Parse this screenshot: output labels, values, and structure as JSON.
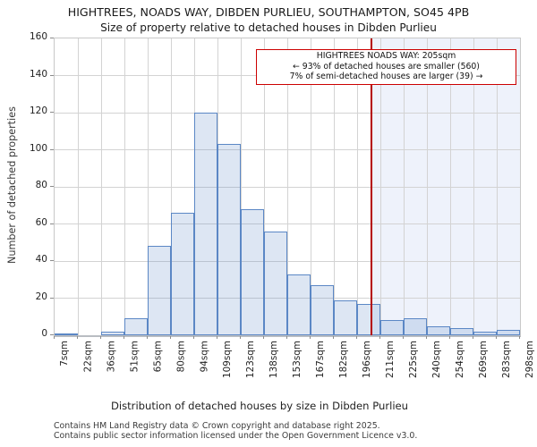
{
  "page": {
    "title_line1": "HIGHTREES, NOADS WAY, DIBDEN PURLIEU, SOUTHAMPTON, SO45 4PB",
    "title_line2": "Size of property relative to detached houses in Dibden Purlieu",
    "footer_line1": "Contains HM Land Registry data © Crown copyright and database right 2025.",
    "footer_line2": "Contains public sector information licensed under the Open Government Licence v3.0."
  },
  "chart_data": {
    "type": "bar",
    "title": "HIGHTREES, NOADS WAY, DIBDEN PURLIEU, SOUTHAMPTON, SO45 4PB",
    "subtitle": "Size of property relative to detached houses in Dibden Purlieu",
    "xlabel": "Distribution of detached houses by size in Dibden Purlieu",
    "ylabel": "Number of detached properties",
    "categories": [
      "7sqm",
      "22sqm",
      "36sqm",
      "51sqm",
      "65sqm",
      "80sqm",
      "94sqm",
      "109sqm",
      "123sqm",
      "138sqm",
      "153sqm",
      "167sqm",
      "182sqm",
      "196sqm",
      "211sqm",
      "225sqm",
      "240sqm",
      "254sqm",
      "269sqm",
      "283sqm",
      "298sqm"
    ],
    "bin_edges_sqm": [
      7,
      22,
      36,
      51,
      65,
      80,
      94,
      109,
      123,
      138,
      153,
      167,
      182,
      196,
      211,
      225,
      240,
      254,
      269,
      283,
      298
    ],
    "values": [
      1,
      0,
      2,
      9,
      48,
      66,
      120,
      103,
      68,
      56,
      33,
      27,
      19,
      17,
      8,
      9,
      5,
      4,
      2,
      3
    ],
    "ylim": [
      0,
      160
    ],
    "yticks": [
      0,
      20,
      40,
      60,
      80,
      100,
      120,
      140,
      160
    ],
    "grid": true,
    "legend": null,
    "marker": {
      "value_sqm": 205,
      "label": "205sqm"
    },
    "annotation": {
      "line1": "HIGHTREES NOADS WAY: 205sqm",
      "line2": "← 93% of detached houses are smaller (560)",
      "line3": "7% of semi-detached houses are larger (39) →"
    },
    "colors": {
      "bar_edge": "#5b87c5",
      "bar_fill": "rgba(100,140,200,0.22)",
      "marker": "#b40000",
      "ann_border": "#cc0000",
      "shade": "#eef2fb",
      "grid": "#d3d3d3",
      "axis_frame": "#c8c8c8",
      "baseline": "#b9bdc2"
    }
  }
}
